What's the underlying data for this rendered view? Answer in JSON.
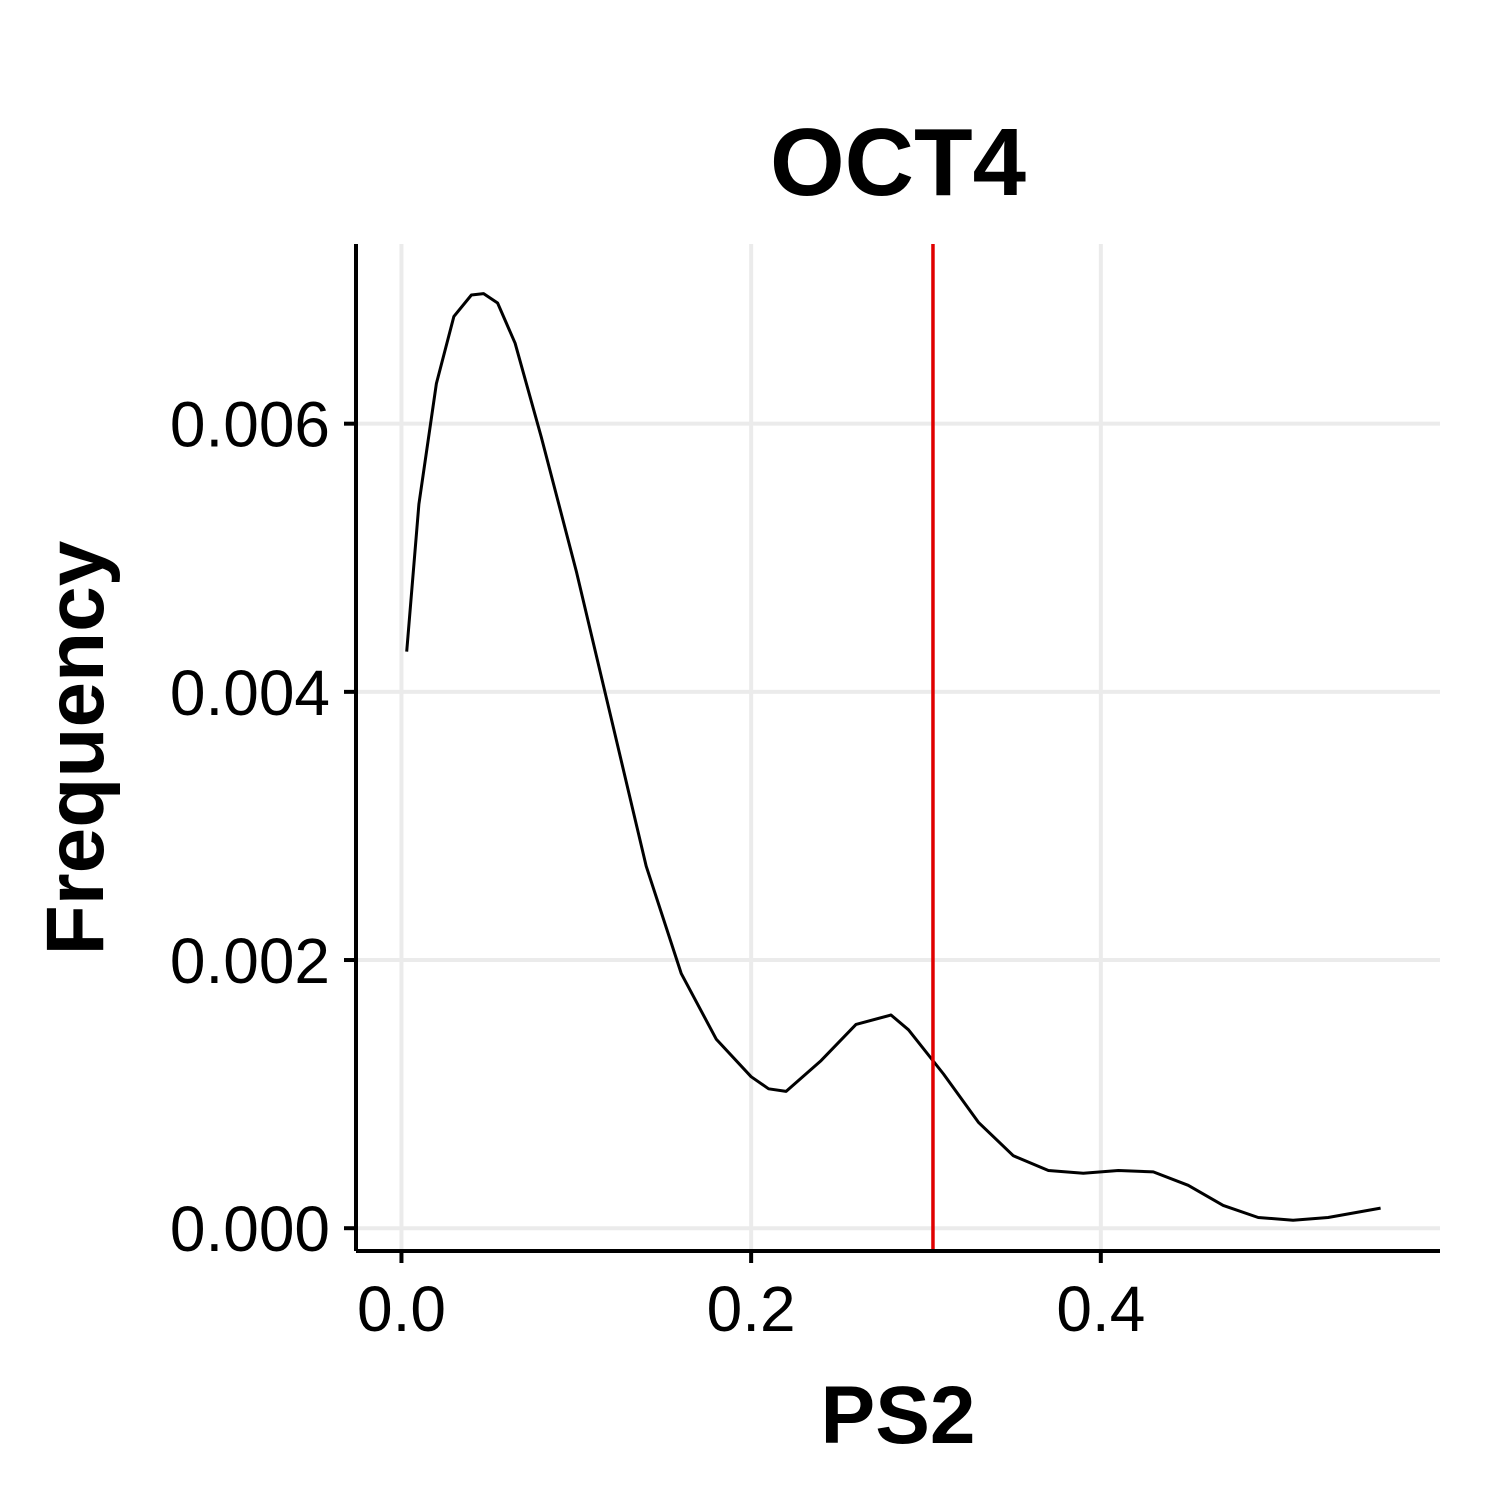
{
  "chart_data": {
    "type": "line",
    "title": "OCT4",
    "xlabel": "PS2",
    "ylabel": "Frequency",
    "xlim": [
      -0.026,
      0.594
    ],
    "ylim": [
      -0.00017,
      0.00734
    ],
    "xticks": [
      0.0,
      0.2,
      0.4
    ],
    "xtick_labels": [
      "0.0",
      "0.2",
      "0.4"
    ],
    "yticks": [
      0.0,
      0.002,
      0.004,
      0.006
    ],
    "ytick_labels": [
      "0.000",
      "0.002",
      "0.004",
      "0.006"
    ],
    "grid": true,
    "series": [
      {
        "color": "#000000",
        "x": [
          0.003,
          0.01,
          0.02,
          0.03,
          0.04,
          0.047,
          0.055,
          0.065,
          0.08,
          0.1,
          0.12,
          0.14,
          0.16,
          0.18,
          0.2,
          0.21,
          0.22,
          0.24,
          0.26,
          0.28,
          0.29,
          0.31,
          0.33,
          0.35,
          0.37,
          0.39,
          0.41,
          0.43,
          0.45,
          0.47,
          0.49,
          0.51,
          0.53,
          0.56
        ],
        "y": [
          0.0043,
          0.0054,
          0.0063,
          0.0068,
          0.00696,
          0.00697,
          0.0069,
          0.0066,
          0.0059,
          0.0049,
          0.0038,
          0.0027,
          0.0019,
          0.00141,
          0.00113,
          0.00104,
          0.00102,
          0.00125,
          0.00152,
          0.00159,
          0.00148,
          0.00115,
          0.00079,
          0.00054,
          0.00043,
          0.00041,
          0.00043,
          0.00042,
          0.00032,
          0.00017,
          8e-05,
          6e-05,
          8e-05,
          0.00015
        ]
      }
    ],
    "vline": {
      "x": 0.304,
      "color": "#e00000"
    }
  }
}
